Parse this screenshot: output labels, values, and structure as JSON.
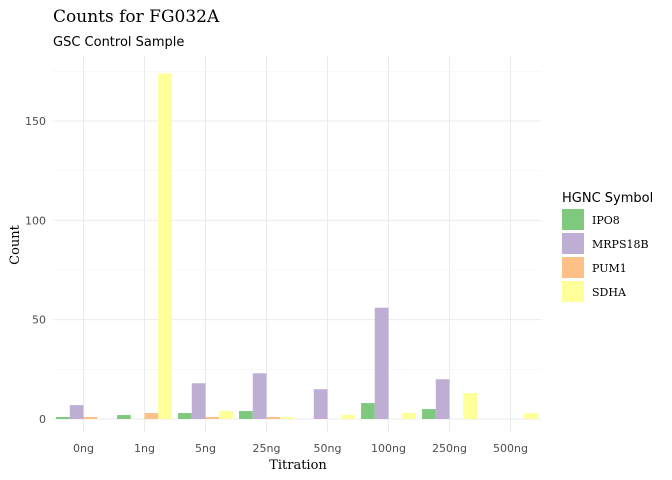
{
  "chart_data": {
    "type": "bar",
    "title": "Counts for FG032A",
    "subtitle": "GSC Control Sample",
    "xlabel": "Titration",
    "ylabel": "Count",
    "ylim": [
      0,
      175
    ],
    "yticks": [
      0,
      50,
      100,
      150
    ],
    "categories": [
      "0ng",
      "1ng",
      "5ng",
      "25ng",
      "50ng",
      "100ng",
      "250ng",
      "500ng"
    ],
    "legend_title": "HGNC Symbol",
    "legend_position": "right",
    "series": [
      {
        "name": "IPO8",
        "color": "#7fc97f",
        "values": [
          1,
          2,
          3,
          4,
          0,
          8,
          5,
          0
        ]
      },
      {
        "name": "MRPS18B",
        "color": "#beaed4",
        "values": [
          7,
          0,
          18,
          23,
          15,
          56,
          20,
          0
        ]
      },
      {
        "name": "PUM1",
        "color": "#fdc086",
        "values": [
          1,
          3,
          1,
          1,
          0,
          0,
          0,
          0
        ]
      },
      {
        "name": "SDHA",
        "color": "#ffff99",
        "values": [
          0,
          174,
          4,
          1,
          2,
          3,
          13,
          3
        ]
      }
    ]
  }
}
